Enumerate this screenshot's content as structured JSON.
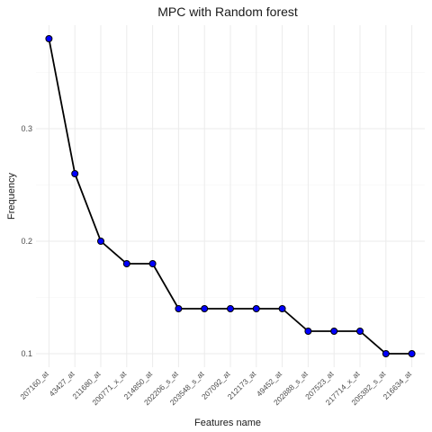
{
  "chart_data": {
    "type": "line",
    "title": "MPC with Random forest",
    "xlabel": "Features name",
    "ylabel": "Frequency",
    "categories": [
      "207160_at",
      "43427_at",
      "211680_at",
      "200771_x_at",
      "214850_at",
      "202206_s_at",
      "203548_s_at",
      "207092_at",
      "212173_at",
      "49452_at",
      "202888_s_at",
      "207523_at",
      "217714_x_at",
      "205382_s_at",
      "216634_at"
    ],
    "values": [
      0.38,
      0.26,
      0.2,
      0.18,
      0.18,
      0.14,
      0.14,
      0.14,
      0.14,
      0.14,
      0.12,
      0.12,
      0.12,
      0.1,
      0.1
    ],
    "yticks": [
      0.1,
      0.2,
      0.3
    ],
    "ylim": [
      0.088,
      0.392
    ],
    "grid": true,
    "line_color": "#000000",
    "marker_color": "#0000ff"
  }
}
